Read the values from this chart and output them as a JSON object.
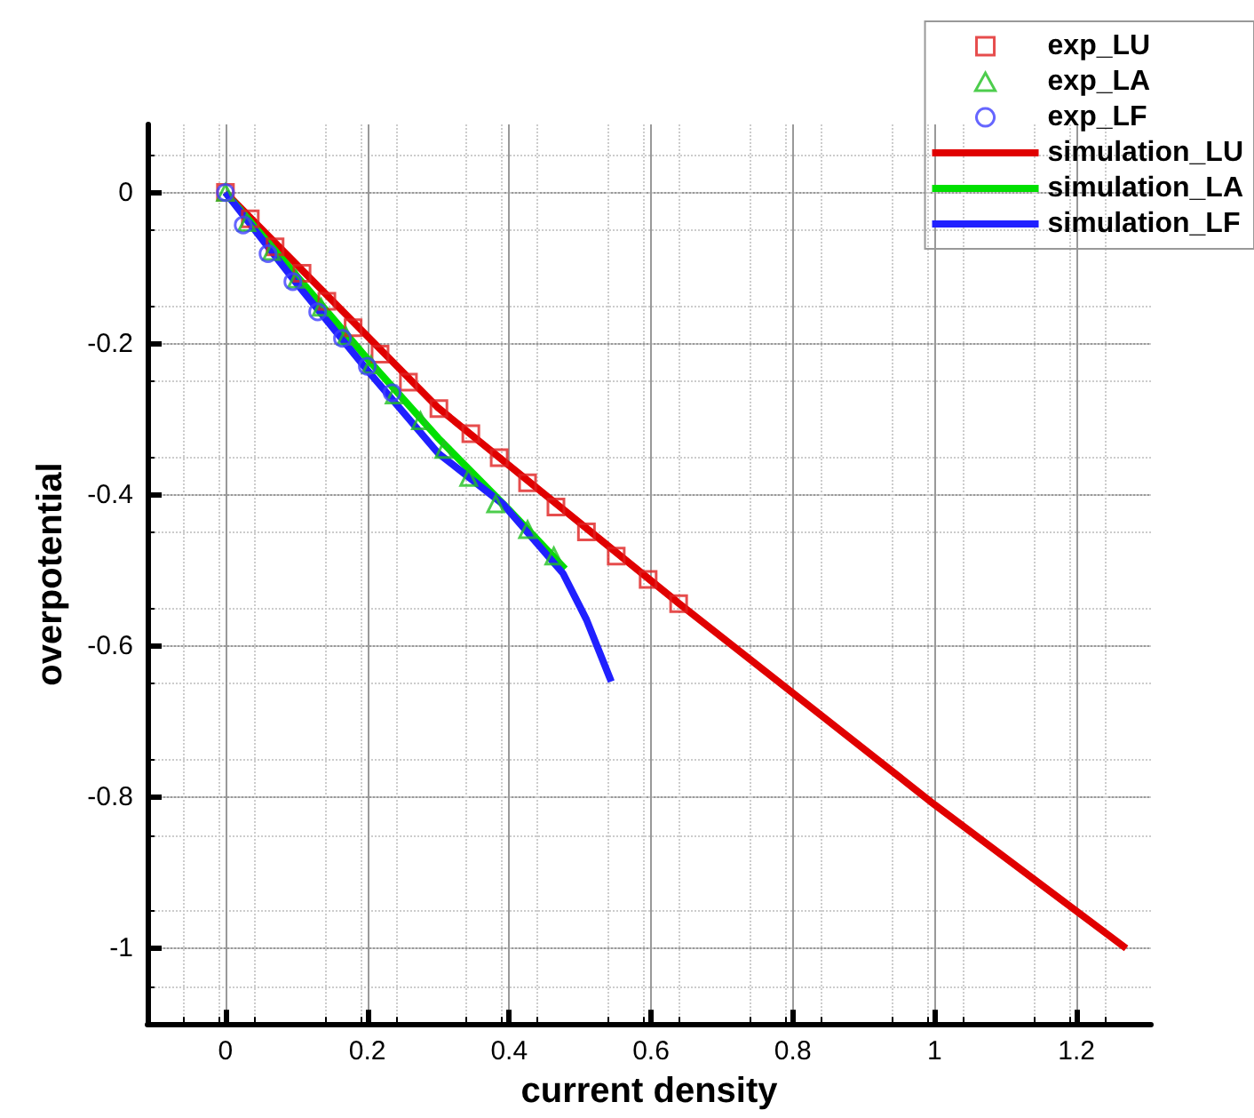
{
  "chart_data": {
    "type": "line",
    "xlabel": "current density",
    "ylabel": "overpotential",
    "xlim": [
      -0.11,
      1.305
    ],
    "ylim": [
      -1.1,
      0.09
    ],
    "xticks": [
      0,
      0.2,
      0.4,
      0.6,
      0.8,
      1,
      1.2
    ],
    "yticks": [
      -1,
      -0.8,
      -0.6,
      -0.4,
      -0.2,
      0
    ],
    "grid": true,
    "legend": "top right",
    "series": [
      {
        "name": "exp_LU",
        "type": "scatter",
        "marker": "square",
        "color": "#e02020",
        "x": [
          0,
          0.035,
          0.07,
          0.108,
          0.143,
          0.18,
          0.218,
          0.258,
          0.301,
          0.346,
          0.386,
          0.426,
          0.466,
          0.509,
          0.551,
          0.596,
          0.639
        ],
        "values": [
          0,
          -0.035,
          -0.072,
          -0.107,
          -0.144,
          -0.179,
          -0.214,
          -0.251,
          -0.286,
          -0.319,
          -0.351,
          -0.384,
          -0.416,
          -0.449,
          -0.481,
          -0.512,
          -0.544
        ]
      },
      {
        "name": "exp_LA",
        "type": "scatter",
        "marker": "triangle",
        "color": "#20c020",
        "x": [
          0,
          0.03,
          0.065,
          0.1,
          0.135,
          0.17,
          0.205,
          0.238,
          0.275,
          0.308,
          0.343,
          0.381,
          0.426,
          0.463
        ],
        "values": [
          0,
          -0.04,
          -0.078,
          -0.115,
          -0.152,
          -0.19,
          -0.228,
          -0.268,
          -0.302,
          -0.34,
          -0.377,
          -0.412,
          -0.446,
          -0.481
        ]
      },
      {
        "name": "exp_LF",
        "type": "scatter",
        "marker": "circle",
        "color": "#4040ff",
        "x": [
          0,
          0.025,
          0.06,
          0.095,
          0.13,
          0.165,
          0.2,
          0.235
        ],
        "values": [
          0,
          -0.043,
          -0.081,
          -0.118,
          -0.158,
          -0.193,
          -0.23,
          -0.265
        ]
      },
      {
        "name": "simulation_LU",
        "marker": "none",
        "color": "#e00000",
        "x": [
          0,
          0.3,
          0.64,
          1.0,
          1.27
        ],
        "values": [
          0,
          -0.285,
          -0.544,
          -0.81,
          -1.0
        ]
      },
      {
        "name": "simulation_LA",
        "marker": "none",
        "color": "#00e000",
        "x": [
          0,
          0.1,
          0.2,
          0.3,
          0.4,
          0.479
        ],
        "values": [
          0,
          -0.11,
          -0.22,
          -0.325,
          -0.42,
          -0.498
        ]
      },
      {
        "name": "simulation_LF",
        "marker": "none",
        "color": "#2020ff",
        "x": [
          0,
          0.1,
          0.2,
          0.3,
          0.391,
          0.476,
          0.509,
          0.544
        ],
        "values": [
          0,
          -0.12,
          -0.235,
          -0.345,
          -0.412,
          -0.504,
          -0.565,
          -0.647
        ]
      }
    ]
  }
}
